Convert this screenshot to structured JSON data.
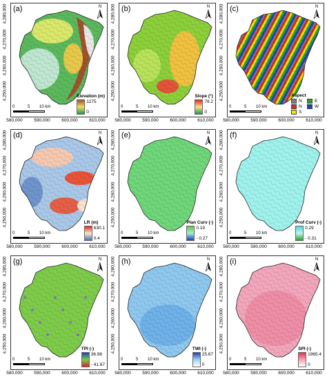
{
  "axes": {
    "y_ticks": [
      "4,280,000",
      "4,270,000",
      "4,260,000",
      "4,250,000"
    ],
    "x_ticks": [
      "580,000",
      "590,000",
      "600,000",
      "610,000"
    ]
  },
  "scale": {
    "zero": "0",
    "mid": "5",
    "end": "10 km"
  },
  "north_label": "N",
  "panels": [
    {
      "label": "(a)",
      "legend_title": "Elevation (m)",
      "max": "1275",
      "min": "0",
      "colors": {
        "ramp_top": "#a0522d",
        "ramp_mid": "#f0e060",
        "ramp_bottom": "#1a9850"
      }
    },
    {
      "label": "(b)",
      "legend_title": "Slope (°)",
      "max": "78.2",
      "min": "0",
      "colors": {
        "ramp_top": "#d73027",
        "ramp_mid": "#fee08b",
        "ramp_bottom": "#1a9850"
      }
    },
    {
      "label": "(c)",
      "legend_title": "Aspect",
      "aspect_classes": [
        {
          "name": "N",
          "color": "#7f7f7f"
        },
        {
          "name": "E",
          "color": "#2ca02c"
        },
        {
          "name": "N",
          "color": "#d62728"
        },
        {
          "name": "W",
          "color": "#1f3fbf"
        },
        {
          "name": "S",
          "color": "#f2e600"
        }
      ]
    },
    {
      "label": "(d)",
      "legend_title": "LR (m)",
      "max": "630.1",
      "min": "0.4",
      "colors": {
        "ramp_top": "#d73027",
        "ramp_mid": "#fbe8c8",
        "ramp_bottom": "#4575b4"
      }
    },
    {
      "label": "(e)",
      "legend_title": "Plan Curv (-)",
      "max": "0.19",
      "min": "- 0.27",
      "colors": {
        "ramp_top": "#6cc24a",
        "ramp_mid": "#a0f0d0",
        "ramp_bottom": "#1f3fbf"
      }
    },
    {
      "label": "(f)",
      "legend_title": "Prof Curv (-)",
      "max": "0.29",
      "min": "- 0.31",
      "colors": {
        "ramp_top": "#5bd6e0",
        "ramp_mid": "#c0f4f0",
        "ramp_bottom": "#2ca02c"
      }
    },
    {
      "label": "(g)",
      "legend_title": "TPI (-)",
      "max": "36.98",
      "min": "- 41.67",
      "colors": {
        "ramp_top": "#1f3fbf",
        "ramp_mid": "#7ecb4a",
        "ramp_bottom": "#d62728"
      }
    },
    {
      "label": "(h)",
      "legend_title": "TWI (-)",
      "max": "25.67",
      "min": "0",
      "colors": {
        "ramp_top": "#1f3fbf",
        "ramp_mid": "#9cd4f0",
        "ramp_bottom": "#ffffff"
      }
    },
    {
      "label": "(i)",
      "legend_title": "SPI (-)",
      "max": "1965.4",
      "min": "0",
      "colors": {
        "ramp_top": "#e8334a",
        "ramp_mid": "#f3a3b4",
        "ramp_bottom": "#ffffff"
      }
    }
  ]
}
